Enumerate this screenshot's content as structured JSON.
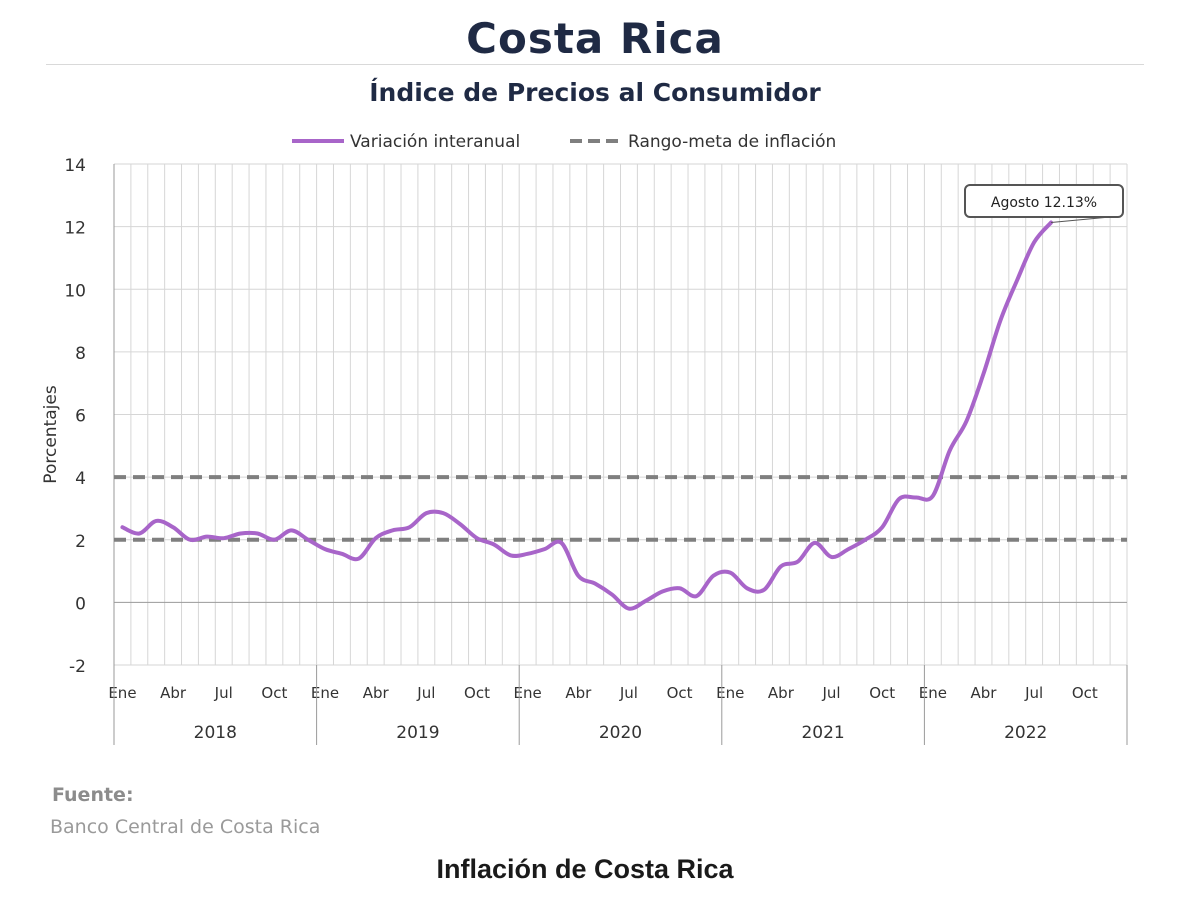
{
  "header": {
    "title": "Costa Rica",
    "subtitle": "Índice de Precios al Consumidor"
  },
  "footer": {
    "source_label": "Fuente:",
    "source_value": "Banco Central de Costa Rica",
    "caption": "Inflación de Costa Rica"
  },
  "chart_data": {
    "type": "line",
    "title": "Índice de Precios al Consumidor",
    "ylabel": "Porcentajes",
    "ylim": [
      -2,
      14
    ],
    "yticks": [
      -2,
      0,
      2,
      4,
      6,
      8,
      10,
      12,
      14
    ],
    "grid": true,
    "legend_position": "top-center",
    "month_ticks": [
      "Ene",
      "Abr",
      "Jul",
      "Oct"
    ],
    "years": [
      "2018",
      "2019",
      "2020",
      "2021",
      "2022"
    ],
    "x": [
      "2018-01",
      "2018-02",
      "2018-03",
      "2018-04",
      "2018-05",
      "2018-06",
      "2018-07",
      "2018-08",
      "2018-09",
      "2018-10",
      "2018-11",
      "2018-12",
      "2019-01",
      "2019-02",
      "2019-03",
      "2019-04",
      "2019-05",
      "2019-06",
      "2019-07",
      "2019-08",
      "2019-09",
      "2019-10",
      "2019-11",
      "2019-12",
      "2020-01",
      "2020-02",
      "2020-03",
      "2020-04",
      "2020-05",
      "2020-06",
      "2020-07",
      "2020-08",
      "2020-09",
      "2020-10",
      "2020-11",
      "2020-12",
      "2021-01",
      "2021-02",
      "2021-03",
      "2021-04",
      "2021-05",
      "2021-06",
      "2021-07",
      "2021-08",
      "2021-09",
      "2021-10",
      "2021-11",
      "2021-12",
      "2022-01",
      "2022-02",
      "2022-03",
      "2022-04",
      "2022-05",
      "2022-06",
      "2022-07",
      "2022-08"
    ],
    "series": [
      {
        "name": "Variación interanual",
        "color": "#a865c9",
        "style": "solid",
        "values": [
          2.4,
          2.2,
          2.6,
          2.4,
          2.0,
          2.1,
          2.05,
          2.2,
          2.2,
          2.0,
          2.3,
          2.0,
          1.7,
          1.55,
          1.4,
          2.05,
          2.3,
          2.4,
          2.85,
          2.85,
          2.5,
          2.05,
          1.85,
          1.5,
          1.55,
          1.7,
          1.9,
          0.85,
          0.6,
          0.25,
          -0.2,
          0.05,
          0.35,
          0.45,
          0.2,
          0.85,
          0.95,
          0.45,
          0.4,
          1.15,
          1.3,
          1.9,
          1.45,
          1.7,
          2.0,
          2.4,
          3.3,
          3.35,
          3.4,
          4.85,
          5.8,
          7.3,
          9.0,
          10.3,
          11.5,
          12.13
        ]
      },
      {
        "name": "Rango-meta de inflación",
        "color": "#7f7f7f",
        "style": "dashed",
        "lines": [
          2,
          4
        ]
      }
    ],
    "annotation": {
      "text": "Agosto 12.13%",
      "x": "2022-08",
      "y": 12.13
    }
  }
}
